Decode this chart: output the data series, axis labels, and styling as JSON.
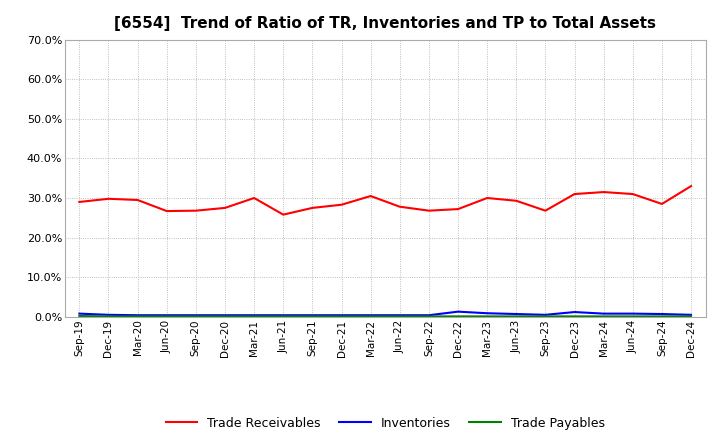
{
  "title": "[6554]  Trend of Ratio of TR, Inventories and TP to Total Assets",
  "x_labels": [
    "Sep-19",
    "Dec-19",
    "Mar-20",
    "Jun-20",
    "Sep-20",
    "Dec-20",
    "Mar-21",
    "Jun-21",
    "Sep-21",
    "Dec-21",
    "Mar-22",
    "Jun-22",
    "Sep-22",
    "Dec-22",
    "Mar-23",
    "Jun-23",
    "Sep-23",
    "Dec-23",
    "Mar-24",
    "Jun-24",
    "Sep-24",
    "Dec-24"
  ],
  "trade_receivables": [
    0.29,
    0.298,
    0.295,
    0.267,
    0.268,
    0.275,
    0.3,
    0.258,
    0.275,
    0.283,
    0.305,
    0.278,
    0.268,
    0.272,
    0.3,
    0.293,
    0.268,
    0.31,
    0.315,
    0.31,
    0.285,
    0.33
  ],
  "inventories": [
    0.008,
    0.005,
    0.004,
    0.004,
    0.004,
    0.004,
    0.004,
    0.004,
    0.004,
    0.004,
    0.004,
    0.004,
    0.004,
    0.013,
    0.009,
    0.007,
    0.005,
    0.012,
    0.008,
    0.008,
    0.007,
    0.005
  ],
  "trade_payables": [
    0.002,
    0.001,
    0.001,
    0.001,
    0.001,
    0.001,
    0.001,
    0.001,
    0.001,
    0.001,
    0.001,
    0.001,
    0.001,
    0.001,
    0.001,
    0.001,
    0.001,
    0.001,
    0.001,
    0.001,
    0.001,
    0.001
  ],
  "tr_color": "#FF0000",
  "inv_color": "#0000FF",
  "tp_color": "#008000",
  "ylim": [
    0.0,
    0.7
  ],
  "yticks": [
    0.0,
    0.1,
    0.2,
    0.3,
    0.4,
    0.5,
    0.6,
    0.7
  ],
  "background_color": "#FFFFFF",
  "plot_bg_color": "#FFFFFF",
  "grid_color": "#AAAAAA",
  "title_fontsize": 11,
  "legend_labels": [
    "Trade Receivables",
    "Inventories",
    "Trade Payables"
  ]
}
